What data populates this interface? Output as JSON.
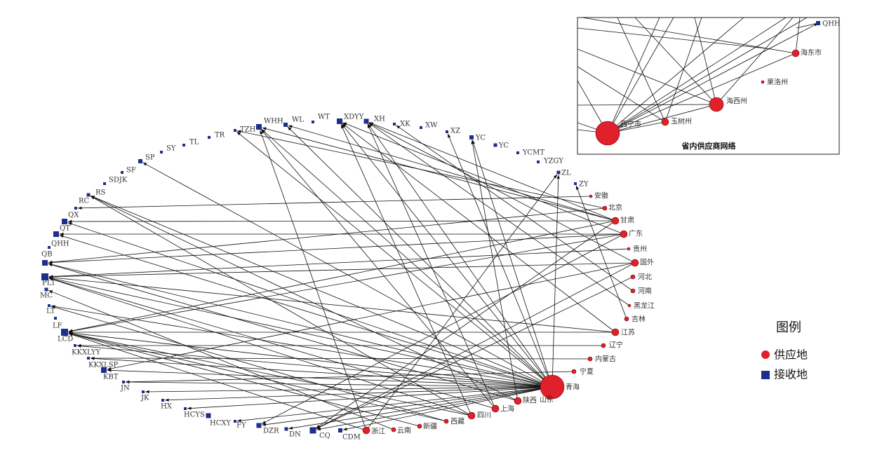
{
  "receivers": [
    {
      "label": "WHH"
    },
    {
      "label": "WL"
    },
    {
      "label": "WT"
    },
    {
      "label": "XDYY"
    },
    {
      "label": "XH"
    },
    {
      "label": "XK"
    },
    {
      "label": "XW"
    },
    {
      "label": "XZ"
    },
    {
      "label": "YC"
    },
    {
      "label": "YC"
    },
    {
      "label": "YCMT"
    },
    {
      "label": "YZGY"
    },
    {
      "label": "ZL"
    },
    {
      "label": "ZY"
    },
    {
      "label": "TZH"
    },
    {
      "label": "TR"
    },
    {
      "label": "TL"
    },
    {
      "label": "SY"
    },
    {
      "label": "SP"
    },
    {
      "label": "SF"
    },
    {
      "label": "SDJK"
    },
    {
      "label": "RS"
    },
    {
      "label": "RC"
    },
    {
      "label": "QX"
    },
    {
      "label": "QT"
    },
    {
      "label": "QHH"
    },
    {
      "label": "QB"
    },
    {
      "label": "PLT"
    },
    {
      "label": "MC"
    },
    {
      "label": "LT"
    },
    {
      "label": "LF"
    },
    {
      "label": "LCD"
    },
    {
      "label": "KKXLYY"
    },
    {
      "label": "KKXLSP"
    },
    {
      "label": "KBT"
    },
    {
      "label": "JN"
    },
    {
      "label": "JK"
    },
    {
      "label": "HX"
    },
    {
      "label": "HCYS"
    },
    {
      "label": "HCXY"
    },
    {
      "label": "FY"
    },
    {
      "label": "DZR"
    },
    {
      "label": "DN"
    },
    {
      "label": "CQ"
    },
    {
      "label": "CDM"
    }
  ],
  "suppliers": [
    {
      "label": "安徽"
    },
    {
      "label": "北京"
    },
    {
      "label": "甘肃"
    },
    {
      "label": "广东"
    },
    {
      "label": "贵州"
    },
    {
      "label": "国外"
    },
    {
      "label": "河北"
    },
    {
      "label": "河南"
    },
    {
      "label": "黑龙江"
    },
    {
      "label": "吉林"
    },
    {
      "label": "江苏"
    },
    {
      "label": "辽宁"
    },
    {
      "label": "内蒙古"
    },
    {
      "label": "宁夏"
    },
    {
      "label": "青海"
    },
    {
      "label": "山东"
    },
    {
      "label": "陕西"
    },
    {
      "label": "上海"
    },
    {
      "label": "四川"
    },
    {
      "label": "西藏"
    },
    {
      "label": "新疆"
    },
    {
      "label": "云南"
    },
    {
      "label": "浙江"
    }
  ],
  "inset": {
    "title": "省内供应商网络",
    "nodes": [
      {
        "label": "QHH"
      },
      {
        "label": "海东市"
      },
      {
        "label": "果洛州"
      },
      {
        "label": "海西州"
      },
      {
        "label": "玉树州"
      },
      {
        "label": "西宁市"
      }
    ]
  },
  "legend": {
    "title": "图例",
    "items": [
      {
        "label": "供应地"
      },
      {
        "label": "接收地"
      }
    ]
  }
}
